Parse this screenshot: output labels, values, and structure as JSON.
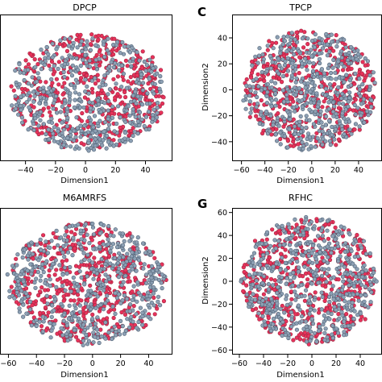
{
  "chart_data": [
    {
      "type": "scatter",
      "panel_label": "",
      "title": "DPCP",
      "xlabel": "Dimension1",
      "ylabel": "",
      "xlim": [
        -57,
        58
      ],
      "ylim": [
        -52,
        68
      ],
      "xticks": [
        -40,
        -20,
        0,
        20,
        40
      ],
      "xtick_labels": [
        "−40",
        "−20",
        "0",
        "20",
        "40"
      ],
      "yticks": [],
      "ytick_labels": [],
      "shape": {
        "type": "ellipse",
        "cx": 2,
        "cy": 4,
        "rx": 52,
        "ry": 47
      },
      "series": [
        {
          "name": "",
          "color": "#e8325a",
          "edge": "#9a2540",
          "bias": "top-right",
          "count": 520,
          "seed": 11
        },
        {
          "name": "",
          "color": "#8da0b4",
          "edge": "#4e5f72",
          "bias": "bottom",
          "count": 520,
          "seed": 23
        }
      ]
    },
    {
      "type": "scatter",
      "panel_label": "C",
      "title": "TPCP",
      "xlabel": "Dimension1",
      "ylabel": "Dimension2",
      "xlim": [
        -68,
        60
      ],
      "ylim": [
        -55,
        58
      ],
      "xticks": [
        -60,
        -40,
        -20,
        0,
        20,
        40
      ],
      "xtick_labels": [
        "−60",
        "−40",
        "−20",
        "0",
        "20",
        "40"
      ],
      "yticks": [
        -40,
        -20,
        0,
        20,
        40
      ],
      "ytick_labels": [
        "−40",
        "−20",
        "0",
        "20",
        "40"
      ],
      "shape": {
        "type": "ellipse",
        "cx": -2,
        "cy": 0,
        "rx": 57,
        "ry": 46
      },
      "series": [
        {
          "name": "",
          "color": "#e8325a",
          "edge": "#9a2540",
          "bias": "left-and-right",
          "count": 520,
          "seed": 37
        },
        {
          "name": "",
          "color": "#8da0b4",
          "edge": "#4e5f72",
          "bias": "center-bottom",
          "count": 520,
          "seed": 41
        }
      ]
    },
    {
      "type": "scatter",
      "panel_label": "",
      "title": "M6AMRFS",
      "xlabel": "Dimension1",
      "ylabel": "",
      "xlim": [
        -66,
        57
      ],
      "ylim": [
        -58,
        58
      ],
      "xticks": [
        -60,
        -40,
        -20,
        0,
        20,
        40
      ],
      "xtick_labels": [
        "−60",
        "−40",
        "−20",
        "0",
        "20",
        "40"
      ],
      "yticks": [],
      "ytick_labels": [],
      "shape": {
        "type": "ellipse",
        "cx": -4,
        "cy": -2,
        "rx": 56,
        "ry": 48
      },
      "series": [
        {
          "name": "",
          "color": "#e8325a",
          "edge": "#9a2540",
          "bias": "center",
          "count": 540,
          "seed": 53
        },
        {
          "name": "",
          "color": "#8da0b4",
          "edge": "#4e5f72",
          "bias": "edges",
          "count": 540,
          "seed": 67
        }
      ]
    },
    {
      "type": "scatter",
      "panel_label": "G",
      "title": "RFHC",
      "xlabel": "Dimension1",
      "ylabel": "Dimension2",
      "xlim": [
        -66,
        58
      ],
      "ylim": [
        -64,
        64
      ],
      "xticks": [
        -60,
        -40,
        -20,
        0,
        20,
        40
      ],
      "xtick_labels": [
        "−60",
        "−40",
        "−20",
        "0",
        "20",
        "40"
      ],
      "yticks": [
        -60,
        -40,
        -20,
        0,
        20,
        40,
        60
      ],
      "ytick_labels": [
        "−60",
        "−40",
        "−20",
        "0",
        "20",
        "40",
        "60"
      ],
      "shape": {
        "type": "ellipse",
        "cx": -2,
        "cy": 0,
        "rx": 56,
        "ry": 55
      },
      "series": [
        {
          "name": "",
          "color": "#e8325a",
          "edge": "#9a2540",
          "bias": "uniform",
          "count": 540,
          "seed": 71
        },
        {
          "name": "",
          "color": "#8da0b4",
          "edge": "#4e5f72",
          "bias": "uniform",
          "count": 540,
          "seed": 89
        }
      ]
    }
  ]
}
